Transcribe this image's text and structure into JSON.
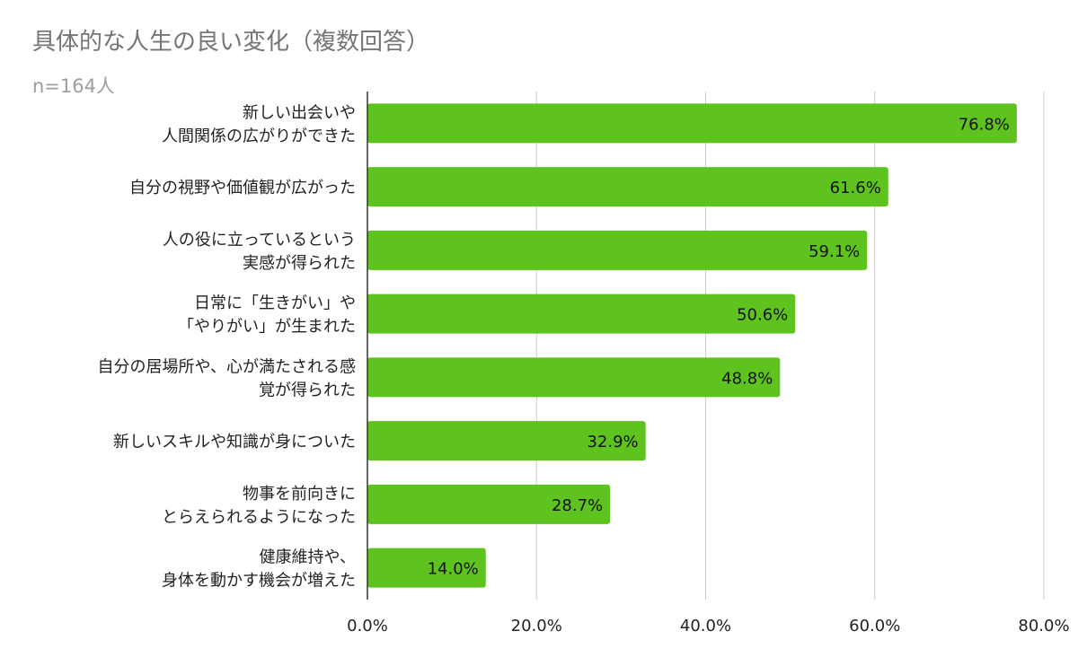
{
  "title": "具体的な人生の良い変化（複数回答）",
  "subtitle": "n=164人",
  "chart_data": {
    "type": "bar",
    "orientation": "horizontal",
    "categories": [
      [
        "新しい出会いや",
        "人間関係の広がりができた"
      ],
      [
        "自分の視野や価値観が広がった"
      ],
      [
        "人の役に立っているという",
        "実感が得られた"
      ],
      [
        "日常に「生きがい」や",
        "「やりがい」が生まれた"
      ],
      [
        "自分の居場所や、心が満たされる感",
        "覚が得られた"
      ],
      [
        "新しいスキルや知識が身についた"
      ],
      [
        "物事を前向きに",
        "とらえられるようになった"
      ],
      [
        "健康維持や、",
        "身体を動かす機会が増えた"
      ]
    ],
    "values": [
      76.8,
      61.6,
      59.1,
      50.6,
      48.8,
      32.9,
      28.7,
      14.0
    ],
    "value_labels": [
      "76.8%",
      "61.6%",
      "59.1%",
      "50.6%",
      "48.8%",
      "32.9%",
      "28.7%",
      "14.0%"
    ],
    "xlim": [
      0,
      80
    ],
    "x_ticks": [
      0,
      20,
      40,
      60,
      80
    ],
    "x_tick_labels": [
      "0.0%",
      "20.0%",
      "40.0%",
      "60.0%",
      "80.0%"
    ],
    "grid": true,
    "legend": "none",
    "bar_color": "#5ec31f"
  }
}
